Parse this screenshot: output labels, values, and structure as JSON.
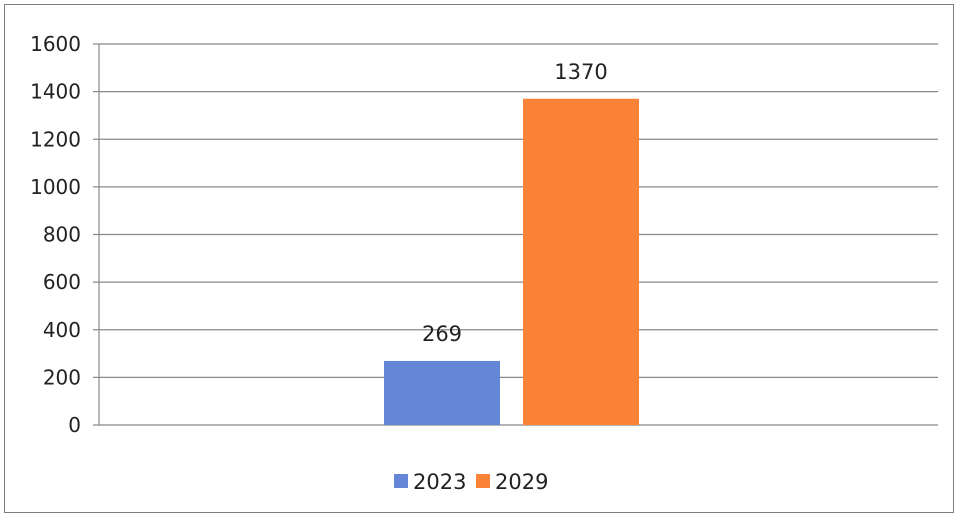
{
  "chart_data": {
    "type": "bar",
    "categories": [
      ""
    ],
    "series": [
      {
        "name": "2023",
        "values": [
          269
        ],
        "color": "#6586d6",
        "data_labels": [
          "269"
        ]
      },
      {
        "name": "2029",
        "values": [
          1370
        ],
        "color": "#fb8337",
        "data_labels": [
          "1370"
        ]
      }
    ],
    "title": "",
    "xlabel": "",
    "ylabel": "",
    "ylim": [
      0,
      1600
    ],
    "yticks": [
      "0",
      "200",
      "400",
      "600",
      "800",
      "1000",
      "1200",
      "1400",
      "1600"
    ],
    "grid": true,
    "legend_position": "bottom",
    "gridline_color": "#888888"
  }
}
